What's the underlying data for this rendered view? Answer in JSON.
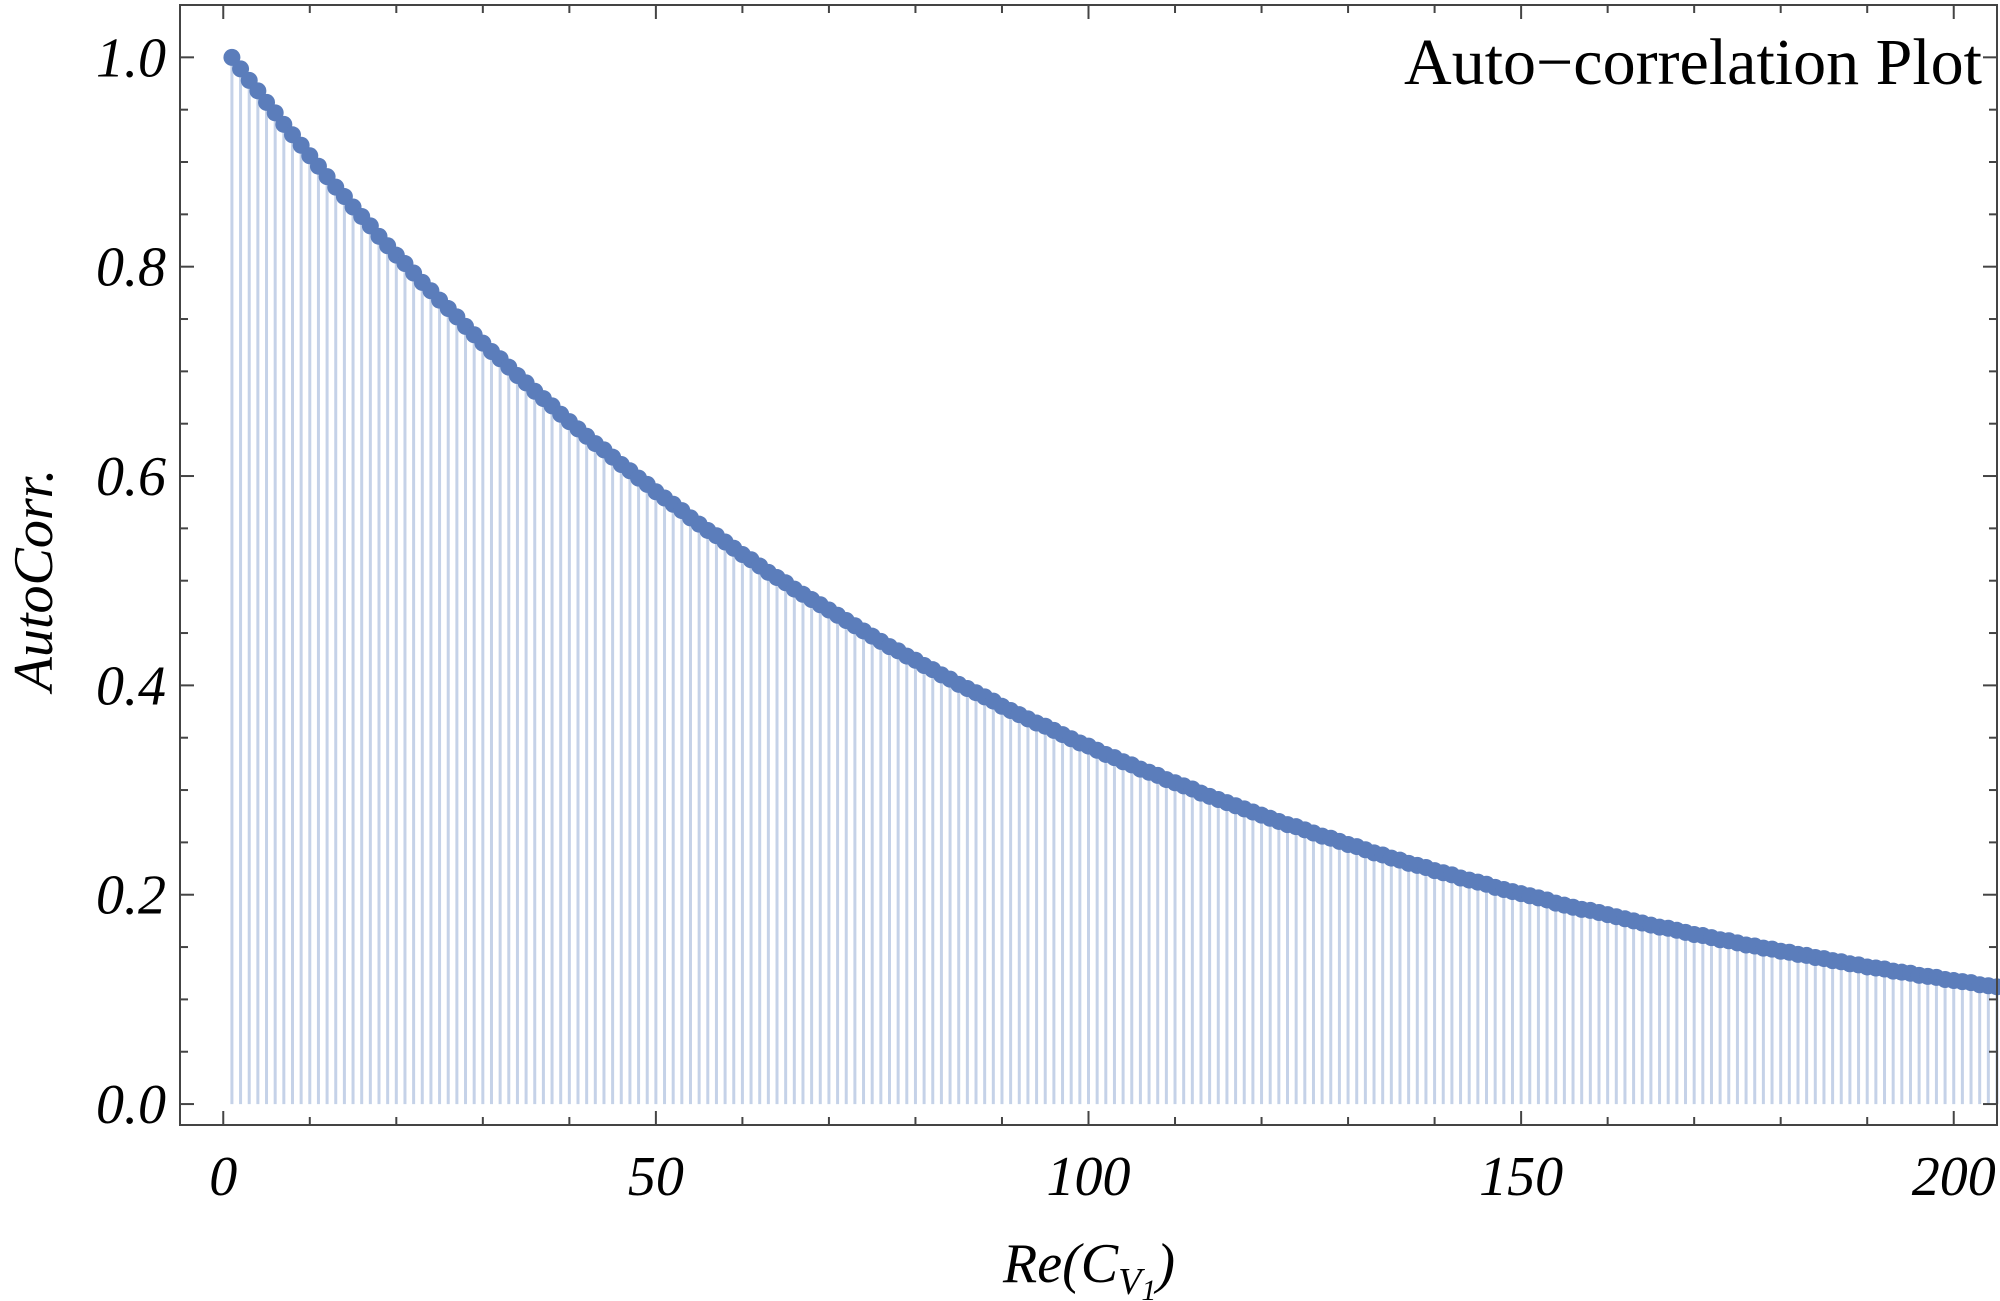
{
  "chart_data": {
    "type": "scatter",
    "title": "Auto−correlation Plot",
    "xlabel": {
      "main": "Re(C",
      "sub": "V",
      "subsub": "1",
      "close": ")"
    },
    "ylabel": "AutoCorr.",
    "xlim": [
      -5,
      205
    ],
    "ylim": [
      -0.02,
      1.05
    ],
    "x_ticks": [
      0,
      50,
      100,
      150,
      200
    ],
    "x_tick_labels": [
      "0",
      "50",
      "100",
      "150",
      "200"
    ],
    "y_ticks": [
      0.0,
      0.2,
      0.4,
      0.6,
      0.8,
      1.0
    ],
    "y_tick_labels": [
      "0.0",
      "0.2",
      "0.4",
      "0.6",
      "0.8",
      "1.0"
    ],
    "grid": false,
    "filled_to_axis": true,
    "series": [
      {
        "x_start": 1,
        "x_end": 201,
        "decay_per_lag": 0.011,
        "values": [
          1.0,
          0.989,
          0.978,
          0.968,
          0.957,
          0.947,
          0.936,
          0.926,
          0.916,
          0.906,
          0.896,
          0.886,
          0.876,
          0.867,
          0.857,
          0.848,
          0.839,
          0.829,
          0.82,
          0.811,
          0.803,
          0.794,
          0.785,
          0.777,
          0.768,
          0.76,
          0.752,
          0.743,
          0.735,
          0.727,
          0.719,
          0.712,
          0.704,
          0.696,
          0.689,
          0.681,
          0.674,
          0.667,
          0.659,
          0.652,
          0.645,
          0.638,
          0.631,
          0.625,
          0.618,
          0.611,
          0.605,
          0.598,
          0.592,
          0.585,
          0.579,
          0.573,
          0.567,
          0.56,
          0.554,
          0.548,
          0.543,
          0.537,
          0.531,
          0.525,
          0.52,
          0.514,
          0.508,
          0.503,
          0.498,
          0.492,
          0.487,
          0.482,
          0.477,
          0.472,
          0.467,
          0.462,
          0.457,
          0.452,
          0.447,
          0.442,
          0.437,
          0.433,
          0.428,
          0.424,
          0.419,
          0.415,
          0.41,
          0.406,
          0.401,
          0.397,
          0.393,
          0.389,
          0.385,
          0.38,
          0.376,
          0.372,
          0.368,
          0.364,
          0.361,
          0.357,
          0.353,
          0.349,
          0.345,
          0.342,
          0.338,
          0.334,
          0.331,
          0.327,
          0.324,
          0.32,
          0.317,
          0.314,
          0.31,
          0.307,
          0.304,
          0.301,
          0.297,
          0.294,
          0.291,
          0.288,
          0.285,
          0.282,
          0.279,
          0.276,
          0.273,
          0.27,
          0.267,
          0.265,
          0.262,
          0.259,
          0.256,
          0.254,
          0.251,
          0.248,
          0.246,
          0.243,
          0.24,
          0.238,
          0.235,
          0.233,
          0.23,
          0.228,
          0.226,
          0.223,
          0.221,
          0.219,
          0.216,
          0.214,
          0.212,
          0.21,
          0.207,
          0.205,
          0.203,
          0.201,
          0.199,
          0.197,
          0.195,
          0.192,
          0.19,
          0.188,
          0.186,
          0.185,
          0.183,
          0.181,
          0.179,
          0.177,
          0.175,
          0.173,
          0.171,
          0.169,
          0.168,
          0.166,
          0.164,
          0.162,
          0.161,
          0.159,
          0.157,
          0.156,
          0.154,
          0.152,
          0.151,
          0.149,
          0.148,
          0.146,
          0.145,
          0.143,
          0.142,
          0.14,
          0.139,
          0.137,
          0.136,
          0.134,
          0.133,
          0.131,
          0.13,
          0.129,
          0.127,
          0.126,
          0.125,
          0.123,
          0.122,
          0.121,
          0.119,
          0.118,
          0.117,
          0.116,
          0.114,
          0.113,
          0.112,
          0.111
        ]
      }
    ],
    "colors": {
      "point": "#5b7dbb",
      "stem": "#c5d2e8",
      "frame": "#444444"
    }
  }
}
